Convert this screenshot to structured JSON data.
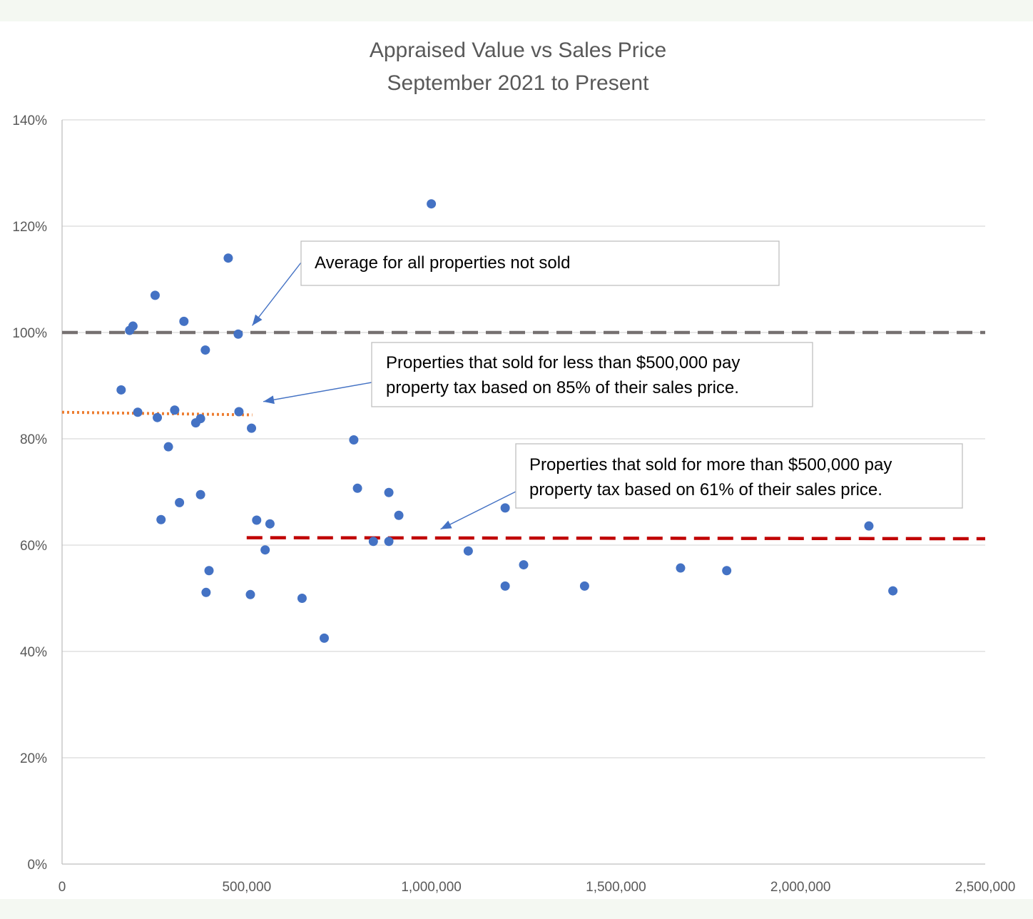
{
  "chart_data": {
    "type": "scatter",
    "title": "Appraised Value vs Sales Price",
    "subtitle": "September 2021 to Present",
    "xlabel": "",
    "ylabel": "",
    "xlim": [
      0,
      2500000
    ],
    "ylim": [
      0,
      1.4
    ],
    "x_ticks": [
      0,
      500000,
      1000000,
      1500000,
      2000000,
      2500000
    ],
    "x_tick_labels": [
      "0",
      "500,000",
      "1,000,000",
      "1,500,000",
      "2,000,000",
      "2,500,000"
    ],
    "y_ticks": [
      0,
      0.2,
      0.4,
      0.6,
      0.8,
      1.0,
      1.2,
      1.4
    ],
    "y_tick_labels": [
      "0%",
      "20%",
      "40%",
      "60%",
      "80%",
      "100%",
      "120%",
      "140%"
    ],
    "grid": "horizontal",
    "marker_color": "#4472c4",
    "points": [
      {
        "x": 160000,
        "y": 0.892
      },
      {
        "x": 183000,
        "y": 1.004
      },
      {
        "x": 192000,
        "y": 1.012
      },
      {
        "x": 205000,
        "y": 0.85
      },
      {
        "x": 252000,
        "y": 1.07
      },
      {
        "x": 258000,
        "y": 0.84
      },
      {
        "x": 268000,
        "y": 0.648
      },
      {
        "x": 288000,
        "y": 0.785
      },
      {
        "x": 305000,
        "y": 0.854
      },
      {
        "x": 318000,
        "y": 0.68
      },
      {
        "x": 330000,
        "y": 1.021
      },
      {
        "x": 362000,
        "y": 0.83
      },
      {
        "x": 375000,
        "y": 0.838
      },
      {
        "x": 375000,
        "y": 0.695
      },
      {
        "x": 388000,
        "y": 0.967
      },
      {
        "x": 390000,
        "y": 0.511
      },
      {
        "x": 398000,
        "y": 0.552
      },
      {
        "x": 450000,
        "y": 1.14
      },
      {
        "x": 477000,
        "y": 0.997
      },
      {
        "x": 479000,
        "y": 0.851
      },
      {
        "x": 510000,
        "y": 0.507
      },
      {
        "x": 513000,
        "y": 0.82
      },
      {
        "x": 527000,
        "y": 0.647
      },
      {
        "x": 550000,
        "y": 0.591
      },
      {
        "x": 563000,
        "y": 0.64
      },
      {
        "x": 650000,
        "y": 0.5
      },
      {
        "x": 710000,
        "y": 0.425
      },
      {
        "x": 790000,
        "y": 0.798
      },
      {
        "x": 800000,
        "y": 0.707
      },
      {
        "x": 843000,
        "y": 0.607
      },
      {
        "x": 885000,
        "y": 0.699
      },
      {
        "x": 885000,
        "y": 0.607
      },
      {
        "x": 912000,
        "y": 0.656
      },
      {
        "x": 1000000,
        "y": 1.242
      },
      {
        "x": 1100000,
        "y": 0.589
      },
      {
        "x": 1200000,
        "y": 0.67
      },
      {
        "x": 1200000,
        "y": 0.523
      },
      {
        "x": 1250000,
        "y": 0.563
      },
      {
        "x": 1415000,
        "y": 0.523
      },
      {
        "x": 1675000,
        "y": 0.557
      },
      {
        "x": 1800000,
        "y": 0.552
      },
      {
        "x": 2185000,
        "y": 0.636
      },
      {
        "x": 2250000,
        "y": 0.514
      }
    ],
    "reference_lines": [
      {
        "y": 1.0,
        "x_start": 0,
        "x_end": 2500000,
        "color": "#767171",
        "style": "dashed"
      },
      {
        "y_start": 0.85,
        "y_end": 0.845,
        "x_start": 0,
        "x_end": 515000,
        "color": "#ed7d31",
        "style": "dotted"
      },
      {
        "y_start": 0.614,
        "y_end": 0.612,
        "x_start": 500000,
        "x_end": 2500000,
        "color": "#c00000",
        "style": "dashed"
      }
    ],
    "annotations": [
      {
        "text_lines": [
          "Average for all properties not sold"
        ],
        "points_to": {
          "x": 515000,
          "y": 1.013
        }
      },
      {
        "text_lines": [
          "Properties that sold for less than $500,000 pay",
          "property tax based on 85% of their sales price."
        ],
        "points_to": {
          "x": 545000,
          "y": 0.87
        }
      },
      {
        "text_lines": [
          "Properties that sold for more than $500,000 pay",
          "property tax based on 61% of their sales price."
        ],
        "points_to": {
          "x": 1025000,
          "y": 0.63
        }
      }
    ]
  }
}
